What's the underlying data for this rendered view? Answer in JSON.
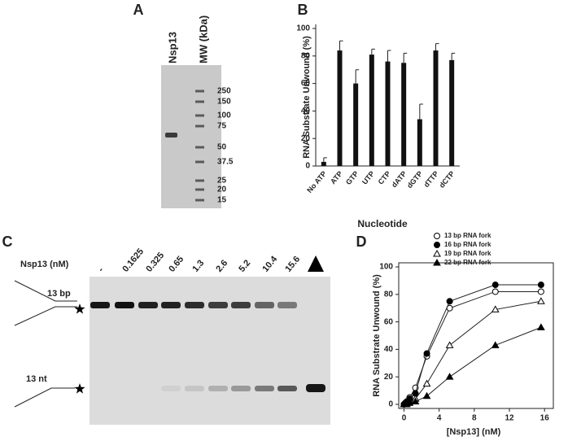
{
  "panels": {
    "a": "A",
    "b": "B",
    "c": "C",
    "d": "D"
  },
  "gel_a": {
    "lanes": [
      "Nsp13",
      "MW (kDa)"
    ],
    "markers": [
      "250",
      "150",
      "100",
      "75",
      "50",
      "37.5",
      "25",
      "20",
      "15"
    ]
  },
  "gel_c": {
    "axis_label": "Nsp13 (nM)",
    "lanes": [
      "-",
      "0.1625",
      "0.325",
      "0.65",
      "1.3",
      "2.6",
      "5.2",
      "10.4",
      "15.6"
    ],
    "substrate_label": "13 bp",
    "product_label": "13 nt"
  },
  "chart_data": [
    {
      "type": "bar",
      "ylabel": "RNA Substrate Unwound (%)",
      "xlabel": "Nucleotide",
      "categories": [
        "No ATP",
        "ATP",
        "GTP",
        "UTP",
        "CTP",
        "dATP",
        "dGTP",
        "dTTP",
        "dCTP"
      ],
      "values": [
        3,
        84,
        60,
        81,
        76,
        75,
        34,
        84,
        77
      ],
      "errors": [
        3,
        7,
        10,
        4,
        8,
        7,
        11,
        5,
        5
      ],
      "color": "#111111",
      "ylim": [
        0,
        100
      ],
      "yticks": [
        0,
        20,
        40,
        60,
        80,
        100
      ]
    },
    {
      "type": "line",
      "ylabel": "RNA Substrate Unwound (%)",
      "xlabel": "[Nsp13] (nM)",
      "x": [
        0,
        0.1625,
        0.325,
        0.65,
        1.3,
        2.6,
        5.2,
        10.4,
        15.6
      ],
      "series": [
        {
          "name": "13 bp RNA fork",
          "marker": "circle-open",
          "color": "#000000",
          "values": [
            0,
            1,
            2,
            5,
            12,
            35,
            70,
            82,
            82
          ]
        },
        {
          "name": "16 bp RNA fork",
          "marker": "circle-filled",
          "color": "#000000",
          "values": [
            0,
            1,
            2,
            4,
            8,
            37,
            75,
            87,
            87
          ]
        },
        {
          "name": "19 bp RNA fork",
          "marker": "triangle-open",
          "color": "#000000",
          "values": [
            0,
            0,
            1,
            2,
            4,
            15,
            43,
            69,
            75
          ]
        },
        {
          "name": "22 bp RNA fork",
          "marker": "triangle-filled",
          "color": "#000000",
          "values": [
            0,
            0,
            0,
            1,
            2,
            6,
            20,
            43,
            56
          ]
        }
      ],
      "xlim": [
        -0.6,
        17
      ],
      "ylim": [
        -3,
        103
      ],
      "xticks": [
        0,
        4,
        8,
        12,
        16
      ],
      "yticks": [
        0,
        20,
        40,
        60,
        80,
        100
      ],
      "legend": "top"
    }
  ]
}
